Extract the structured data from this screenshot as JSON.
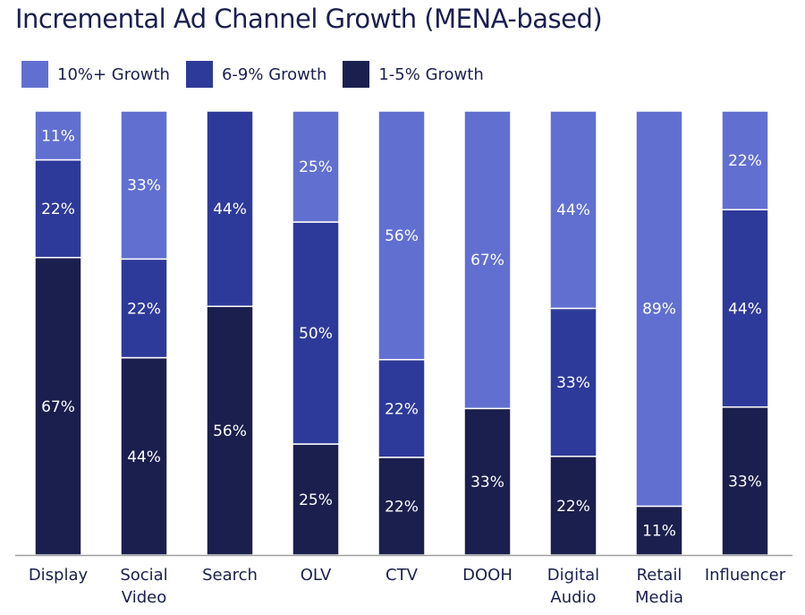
{
  "chart_data": {
    "type": "bar",
    "stacked": true,
    "normalized_100": true,
    "title": "Incremental Ad Channel Growth (MENA-based)",
    "xlabel": "",
    "ylabel": "",
    "grid": false,
    "legend_position": "top-left",
    "categories": [
      [
        "Display"
      ],
      [
        "Social",
        "Video"
      ],
      [
        "Search"
      ],
      [
        "OLV"
      ],
      [
        "CTV"
      ],
      [
        "DOOH"
      ],
      [
        "Digital",
        "Audio"
      ],
      [
        "Retail",
        "Media"
      ],
      [
        "Influencer"
      ]
    ],
    "series": [
      {
        "name": "10%+ Growth",
        "color": "#6170d0",
        "values": [
          11,
          33,
          0,
          25,
          56,
          67,
          44,
          89,
          22
        ]
      },
      {
        "name": "6-9% Growth",
        "color": "#2e3a9a",
        "values": [
          22,
          22,
          44,
          50,
          22,
          0,
          33,
          0,
          44
        ]
      },
      {
        "name": "1-5% Growth",
        "color": "#1b1f4e",
        "values": [
          67,
          44,
          56,
          25,
          22,
          33,
          22,
          11,
          33
        ]
      }
    ],
    "value_suffix": "%"
  }
}
